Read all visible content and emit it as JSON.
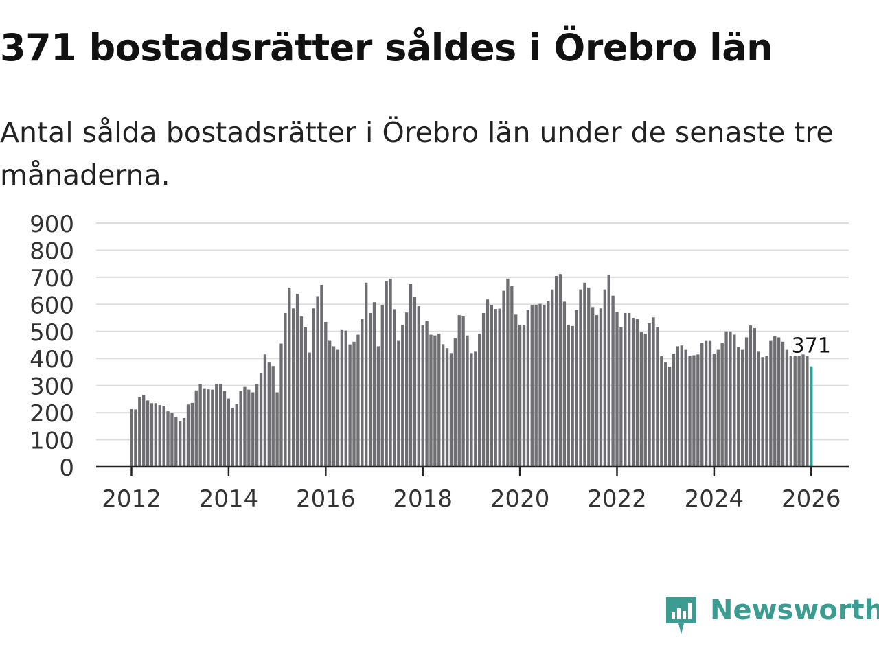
{
  "title": "371 bostadsrätter såldes i Örebro län",
  "subtitle": "Antal sålda bostadsrätter i Örebro län under de senaste tre månaderna.",
  "brand": {
    "name": "Newsworthy",
    "icon": "newsworthy-logo-icon"
  },
  "colors": {
    "bar": "#6e6d72",
    "highlight": "#2aa49b",
    "grid": "#dcdcdc",
    "axis": "#222222",
    "brand": "#3c9c91"
  },
  "chart_data": {
    "type": "bar",
    "title": "Antal sålda bostadsrätter",
    "xlabel": "",
    "ylabel": "",
    "ylim": [
      0,
      900
    ],
    "yticks": [
      0,
      100,
      200,
      300,
      400,
      500,
      600,
      700,
      800,
      900
    ],
    "xticks": [
      "2012",
      "2014",
      "2016",
      "2018",
      "2020",
      "2022",
      "2024",
      "2026"
    ],
    "x_start": "2012-01",
    "annotation": {
      "label": "371",
      "index": 168
    },
    "values": [
      213,
      212,
      256,
      265,
      245,
      235,
      235,
      228,
      225,
      205,
      198,
      185,
      168,
      180,
      230,
      236,
      282,
      305,
      290,
      286,
      285,
      305,
      305,
      280,
      252,
      218,
      232,
      280,
      295,
      285,
      275,
      305,
      345,
      415,
      385,
      372,
      275,
      455,
      568,
      662,
      585,
      638,
      555,
      515,
      422,
      585,
      630,
      672,
      535,
      465,
      445,
      432,
      505,
      503,
      452,
      462,
      488,
      545,
      680,
      568,
      608,
      445,
      597,
      685,
      695,
      582,
      465,
      525,
      570,
      675,
      628,
      593,
      523,
      540,
      488,
      485,
      492,
      453,
      438,
      420,
      475,
      560,
      555,
      485,
      420,
      425,
      492,
      568,
      618,
      598,
      583,
      584,
      650,
      695,
      667,
      562,
      525,
      525,
      580,
      598,
      598,
      602,
      598,
      612,
      655,
      705,
      712,
      610,
      525,
      520,
      578,
      655,
      680,
      662,
      590,
      560,
      585,
      655,
      710,
      632,
      572,
      515,
      568,
      568,
      550,
      545,
      498,
      492,
      530,
      552,
      515,
      408,
      385,
      370,
      418,
      445,
      448,
      432,
      410,
      412,
      415,
      457,
      465,
      465,
      418,
      432,
      458,
      500,
      500,
      488,
      442,
      432,
      478,
      522,
      512,
      425,
      405,
      410,
      465,
      483,
      478,
      462,
      432,
      410,
      408,
      410,
      415,
      408,
      371
    ]
  }
}
